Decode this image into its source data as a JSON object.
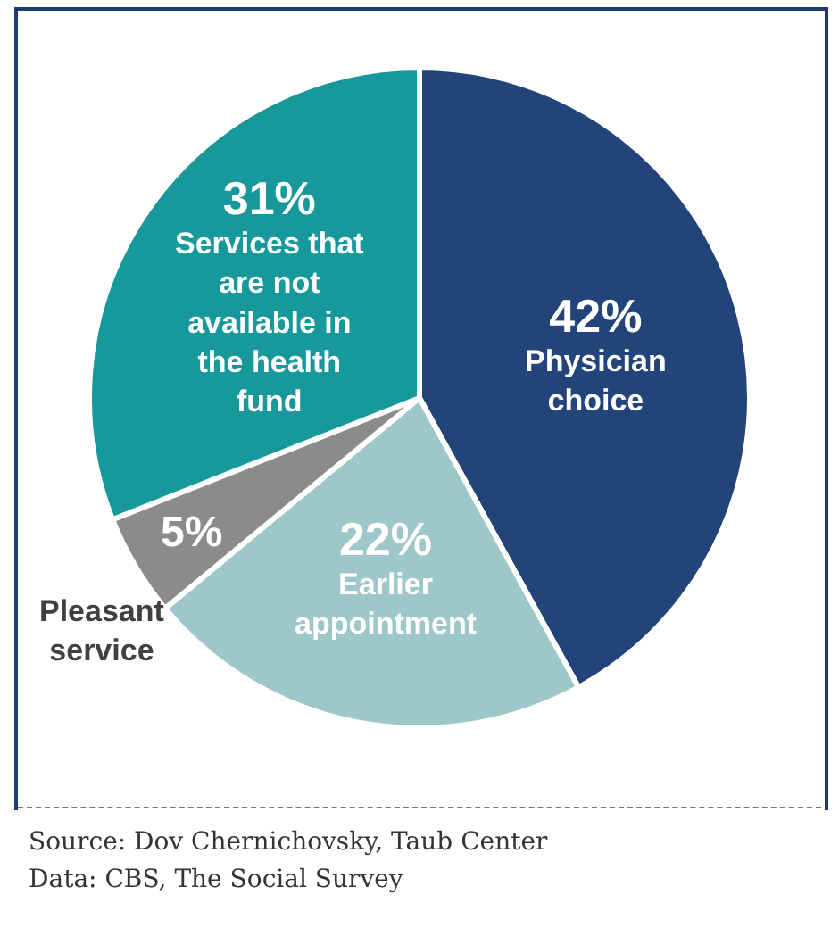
{
  "chart_data": {
    "type": "pie",
    "categories": [
      "Physician choice",
      "Earlier appointment",
      "Pleasant service",
      "Services that are not available in the health fund"
    ],
    "values": [
      42,
      22,
      5,
      31
    ],
    "colors": [
      "#234479",
      "#9ec7c9",
      "#8a8b8d",
      "#17989a"
    ],
    "value_labels": [
      "42%",
      "22%",
      "5%",
      "31%"
    ],
    "annotations": [
      "Source: Dov Chernichovsky, Taub Center",
      "Data: CBS, The Social Survey"
    ]
  }
}
